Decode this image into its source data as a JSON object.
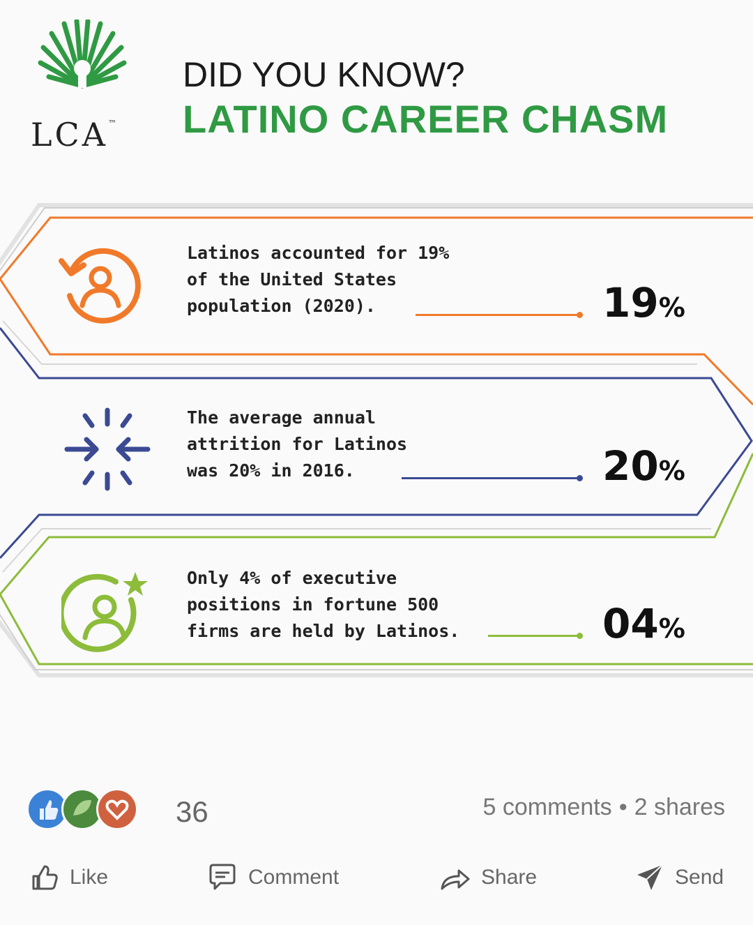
{
  "header": {
    "logo_text": "LCA",
    "logo_tm": "™",
    "kicker": "DID YOU KNOW?",
    "title": "LATINO CAREER CHASM"
  },
  "stats": [
    {
      "text": "Latinos accounted for 19%\nof the United States\npopulation (2020).",
      "value": "19",
      "unit": "%",
      "color": "#f07a2a",
      "icon": "refresh-user-icon"
    },
    {
      "text": "The average annual\nattrition for Latinos\nwas 20% in 2016.",
      "value": "20",
      "unit": "%",
      "color": "#3b4a93",
      "icon": "converge-arrows-icon"
    },
    {
      "text": "Only 4% of executive\npositions in fortune 500\nfirms are held by Latinos.",
      "value": "04",
      "unit": "%",
      "color": "#8cbc3a",
      "icon": "user-star-icon"
    }
  ],
  "social": {
    "reaction_count": "36",
    "comments": "5 comments",
    "separator": "•",
    "shares": "2 shares",
    "actions": [
      "Like",
      "Comment",
      "Share",
      "Send"
    ]
  },
  "colors": {
    "brand_green": "#2f9a43",
    "orange": "#f07a2a",
    "navy": "#3b4a93",
    "lime": "#8cbc3a"
  }
}
